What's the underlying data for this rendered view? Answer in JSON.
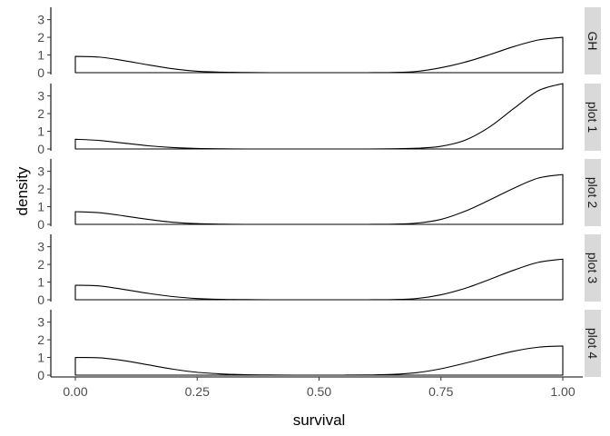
{
  "chart_data": {
    "type": "area",
    "xlabel": "survival",
    "ylabel": "density",
    "xlim": [
      0,
      1
    ],
    "ylim": [
      0,
      3.7
    ],
    "x_ticks": [
      {
        "value": 0,
        "label": "0.00"
      },
      {
        "value": 0.25,
        "label": "0.25"
      },
      {
        "value": 0.5,
        "label": "0.50"
      },
      {
        "value": 0.75,
        "label": "0.75"
      },
      {
        "value": 1,
        "label": "1.00"
      }
    ],
    "y_ticks": [
      {
        "value": 0,
        "label": "0"
      },
      {
        "value": 1,
        "label": "1"
      },
      {
        "value": 2,
        "label": "2"
      },
      {
        "value": 3,
        "label": "3"
      }
    ],
    "grid": false,
    "facet_strip_fill": "#d9d9d9",
    "line_color": "#000000",
    "x": [
      0,
      0.05,
      0.1,
      0.15,
      0.2,
      0.25,
      0.3,
      0.35,
      0.4,
      0.45,
      0.5,
      0.55,
      0.6,
      0.65,
      0.7,
      0.75,
      0.8,
      0.85,
      0.9,
      0.95,
      1.0
    ],
    "panels": [
      {
        "label": "GH",
        "density": [
          0.92,
          0.88,
          0.68,
          0.44,
          0.22,
          0.08,
          0.03,
          0.01,
          0,
          0,
          0,
          0,
          0,
          0.01,
          0.07,
          0.28,
          0.6,
          1.02,
          1.48,
          1.85,
          2.0
        ]
      },
      {
        "label": "plot 1",
        "density": [
          0.55,
          0.48,
          0.33,
          0.18,
          0.08,
          0.03,
          0.01,
          0,
          0,
          0,
          0,
          0,
          0,
          0.01,
          0.04,
          0.15,
          0.5,
          1.25,
          2.3,
          3.3,
          3.7
        ]
      },
      {
        "label": "plot 2",
        "density": [
          0.72,
          0.66,
          0.48,
          0.28,
          0.12,
          0.04,
          0.01,
          0,
          0,
          0,
          0,
          0,
          0,
          0.01,
          0.07,
          0.28,
          0.75,
          1.38,
          2.05,
          2.62,
          2.82
        ]
      },
      {
        "label": "plot 3",
        "density": [
          0.82,
          0.78,
          0.58,
          0.36,
          0.18,
          0.07,
          0.02,
          0.01,
          0,
          0,
          0,
          0,
          0,
          0.01,
          0.07,
          0.28,
          0.65,
          1.15,
          1.68,
          2.12,
          2.3
        ]
      },
      {
        "label": "plot 4",
        "density": [
          1.0,
          0.98,
          0.82,
          0.58,
          0.34,
          0.16,
          0.07,
          0.02,
          0.01,
          0,
          0,
          0,
          0.01,
          0.04,
          0.14,
          0.36,
          0.68,
          1.03,
          1.36,
          1.58,
          1.65
        ]
      }
    ]
  }
}
